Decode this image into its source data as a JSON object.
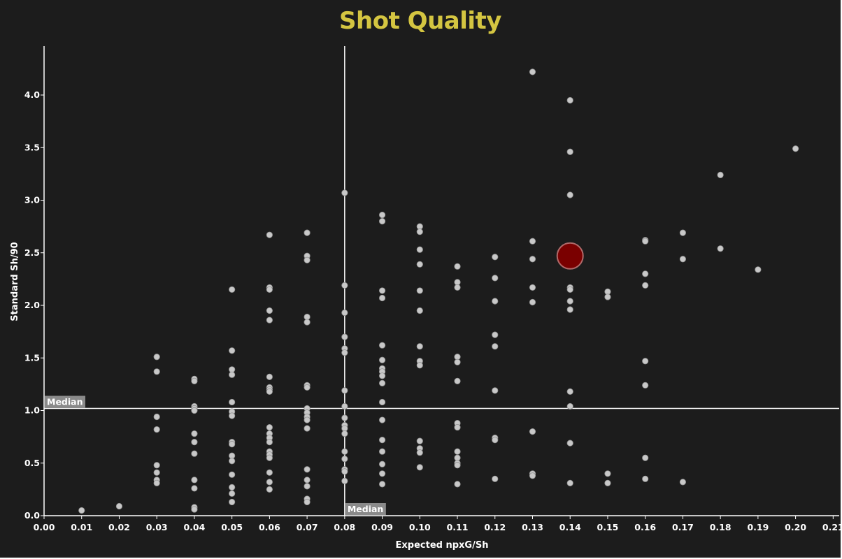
{
  "chart_data": {
    "type": "scatter",
    "title": "Shot Quality",
    "xlabel": "Expected npxG/Sh",
    "ylabel": "Standard Sh/90",
    "xlim": [
      0.0,
      0.21
    ],
    "ylim": [
      0.0,
      4.4
    ],
    "x_ticks": [
      "0.00",
      "0.01",
      "0.02",
      "0.03",
      "0.04",
      "0.05",
      "0.06",
      "0.07",
      "0.08",
      "0.09",
      "0.10",
      "0.11",
      "0.12",
      "0.13",
      "0.14",
      "0.15",
      "0.16",
      "0.17",
      "0.18",
      "0.19",
      "0.20",
      "0.21"
    ],
    "y_ticks": [
      "0.0",
      "0.5",
      "1.0",
      "1.5",
      "2.0",
      "2.5",
      "3.0",
      "3.5",
      "4.0"
    ],
    "median_x": 0.08,
    "median_y": 1.02,
    "median_label": "Median",
    "grid": false,
    "colors": {
      "background": "#1c1c1c",
      "title": "#d4c541",
      "points": "#c8c8c8",
      "highlight": "#7a0000",
      "lines": "#ffffff",
      "median_box": "#8a8a8a"
    },
    "highlight": {
      "x": 0.14,
      "y": 2.47
    },
    "points": [
      [
        0.01,
        0.05
      ],
      [
        0.02,
        0.09
      ],
      [
        0.03,
        1.51
      ],
      [
        0.03,
        1.37
      ],
      [
        0.03,
        0.94
      ],
      [
        0.03,
        0.82
      ],
      [
        0.03,
        0.48
      ],
      [
        0.03,
        0.41
      ],
      [
        0.03,
        0.34
      ],
      [
        0.03,
        0.31
      ],
      [
        0.04,
        1.3
      ],
      [
        0.04,
        1.28
      ],
      [
        0.04,
        1.04
      ],
      [
        0.04,
        1.02
      ],
      [
        0.04,
        1.0
      ],
      [
        0.04,
        0.78
      ],
      [
        0.04,
        0.7
      ],
      [
        0.04,
        0.59
      ],
      [
        0.04,
        0.34
      ],
      [
        0.04,
        0.26
      ],
      [
        0.04,
        0.08
      ],
      [
        0.04,
        0.06
      ],
      [
        0.05,
        2.15
      ],
      [
        0.05,
        1.57
      ],
      [
        0.05,
        1.39
      ],
      [
        0.05,
        1.34
      ],
      [
        0.05,
        1.08
      ],
      [
        0.05,
        0.99
      ],
      [
        0.05,
        0.95
      ],
      [
        0.05,
        0.7
      ],
      [
        0.05,
        0.68
      ],
      [
        0.05,
        0.57
      ],
      [
        0.05,
        0.52
      ],
      [
        0.05,
        0.39
      ],
      [
        0.05,
        0.27
      ],
      [
        0.05,
        0.21
      ],
      [
        0.05,
        0.13
      ],
      [
        0.06,
        2.67
      ],
      [
        0.06,
        2.17
      ],
      [
        0.06,
        2.15
      ],
      [
        0.06,
        1.95
      ],
      [
        0.06,
        1.86
      ],
      [
        0.06,
        1.32
      ],
      [
        0.06,
        1.22
      ],
      [
        0.06,
        1.2
      ],
      [
        0.06,
        1.18
      ],
      [
        0.06,
        0.84
      ],
      [
        0.06,
        0.78
      ],
      [
        0.06,
        0.74
      ],
      [
        0.06,
        0.7
      ],
      [
        0.06,
        0.61
      ],
      [
        0.06,
        0.58
      ],
      [
        0.06,
        0.55
      ],
      [
        0.06,
        0.41
      ],
      [
        0.06,
        0.32
      ],
      [
        0.06,
        0.25
      ],
      [
        0.07,
        2.69
      ],
      [
        0.07,
        2.47
      ],
      [
        0.07,
        2.43
      ],
      [
        0.07,
        1.89
      ],
      [
        0.07,
        1.84
      ],
      [
        0.07,
        1.24
      ],
      [
        0.07,
        1.22
      ],
      [
        0.07,
        1.02
      ],
      [
        0.07,
        0.98
      ],
      [
        0.07,
        0.94
      ],
      [
        0.07,
        0.91
      ],
      [
        0.07,
        0.83
      ],
      [
        0.07,
        0.44
      ],
      [
        0.07,
        0.34
      ],
      [
        0.07,
        0.28
      ],
      [
        0.07,
        0.16
      ],
      [
        0.07,
        0.13
      ],
      [
        0.08,
        3.07
      ],
      [
        0.08,
        2.19
      ],
      [
        0.08,
        1.93
      ],
      [
        0.08,
        1.7
      ],
      [
        0.08,
        1.59
      ],
      [
        0.08,
        1.55
      ],
      [
        0.08,
        1.19
      ],
      [
        0.08,
        1.04
      ],
      [
        0.08,
        0.93
      ],
      [
        0.08,
        0.86
      ],
      [
        0.08,
        0.83
      ],
      [
        0.08,
        0.78
      ],
      [
        0.08,
        0.61
      ],
      [
        0.08,
        0.54
      ],
      [
        0.08,
        0.44
      ],
      [
        0.08,
        0.42
      ],
      [
        0.08,
        0.33
      ],
      [
        0.09,
        2.86
      ],
      [
        0.09,
        2.8
      ],
      [
        0.09,
        2.14
      ],
      [
        0.09,
        2.07
      ],
      [
        0.09,
        1.62
      ],
      [
        0.09,
        1.48
      ],
      [
        0.09,
        1.4
      ],
      [
        0.09,
        1.37
      ],
      [
        0.09,
        1.33
      ],
      [
        0.09,
        1.26
      ],
      [
        0.09,
        1.08
      ],
      [
        0.09,
        0.91
      ],
      [
        0.09,
        0.72
      ],
      [
        0.09,
        0.61
      ],
      [
        0.09,
        0.49
      ],
      [
        0.09,
        0.4
      ],
      [
        0.09,
        0.3
      ],
      [
        0.1,
        2.75
      ],
      [
        0.1,
        2.7
      ],
      [
        0.1,
        2.53
      ],
      [
        0.1,
        2.39
      ],
      [
        0.1,
        2.14
      ],
      [
        0.1,
        1.95
      ],
      [
        0.1,
        1.61
      ],
      [
        0.1,
        1.47
      ],
      [
        0.1,
        1.43
      ],
      [
        0.1,
        0.71
      ],
      [
        0.1,
        0.64
      ],
      [
        0.1,
        0.6
      ],
      [
        0.1,
        0.46
      ],
      [
        0.11,
        2.37
      ],
      [
        0.11,
        2.22
      ],
      [
        0.11,
        2.17
      ],
      [
        0.11,
        1.51
      ],
      [
        0.11,
        1.46
      ],
      [
        0.11,
        1.28
      ],
      [
        0.11,
        0.88
      ],
      [
        0.11,
        0.84
      ],
      [
        0.11,
        0.61
      ],
      [
        0.11,
        0.55
      ],
      [
        0.11,
        0.5
      ],
      [
        0.11,
        0.48
      ],
      [
        0.11,
        0.3
      ],
      [
        0.12,
        2.46
      ],
      [
        0.12,
        2.26
      ],
      [
        0.12,
        2.04
      ],
      [
        0.12,
        1.72
      ],
      [
        0.12,
        1.61
      ],
      [
        0.12,
        1.19
      ],
      [
        0.12,
        0.74
      ],
      [
        0.12,
        0.72
      ],
      [
        0.12,
        0.35
      ],
      [
        0.13,
        4.22
      ],
      [
        0.13,
        2.61
      ],
      [
        0.13,
        2.44
      ],
      [
        0.13,
        2.17
      ],
      [
        0.13,
        2.03
      ],
      [
        0.13,
        0.8
      ],
      [
        0.13,
        0.4
      ],
      [
        0.13,
        0.38
      ],
      [
        0.14,
        3.95
      ],
      [
        0.14,
        3.46
      ],
      [
        0.14,
        3.05
      ],
      [
        0.14,
        2.17
      ],
      [
        0.14,
        2.15
      ],
      [
        0.14,
        2.04
      ],
      [
        0.14,
        1.96
      ],
      [
        0.14,
        1.18
      ],
      [
        0.14,
        1.04
      ],
      [
        0.14,
        0.69
      ],
      [
        0.14,
        0.31
      ],
      [
        0.15,
        2.13
      ],
      [
        0.15,
        2.08
      ],
      [
        0.15,
        0.4
      ],
      [
        0.15,
        0.31
      ],
      [
        0.16,
        2.62
      ],
      [
        0.16,
        2.61
      ],
      [
        0.16,
        2.3
      ],
      [
        0.16,
        2.19
      ],
      [
        0.16,
        1.47
      ],
      [
        0.16,
        1.24
      ],
      [
        0.16,
        0.55
      ],
      [
        0.16,
        0.35
      ],
      [
        0.17,
        2.69
      ],
      [
        0.17,
        2.44
      ],
      [
        0.17,
        0.32
      ],
      [
        0.18,
        3.24
      ],
      [
        0.18,
        2.54
      ],
      [
        0.19,
        2.34
      ],
      [
        0.2,
        3.49
      ]
    ]
  }
}
